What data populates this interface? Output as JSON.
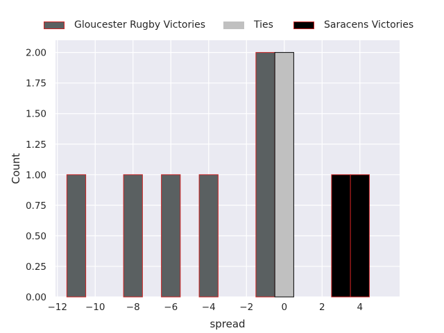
{
  "chart_data": {
    "type": "bar",
    "title": "",
    "xlabel": "spread",
    "ylabel": "Count",
    "xlim": [
      -12.1,
      6.1
    ],
    "ylim": [
      0,
      2.1
    ],
    "bin_width": 1,
    "grid": true,
    "legend_position": "top-center",
    "xticks": [
      -12,
      -10,
      -8,
      -6,
      -4,
      -2,
      0,
      2,
      4
    ],
    "xtick_labels": [
      "−12",
      "−10",
      "−8",
      "−6",
      "−4",
      "−2",
      "0",
      "2",
      "4"
    ],
    "yticks": [
      0,
      0.25,
      0.5,
      0.75,
      1.0,
      1.25,
      1.5,
      1.75,
      2.0
    ],
    "ytick_labels": [
      "0.00",
      "0.25",
      "0.50",
      "0.75",
      "1.00",
      "1.25",
      "1.50",
      "1.75",
      "2.00"
    ],
    "series": [
      {
        "name": "Gloucester Rugby Victories",
        "fill": "#5a6061",
        "edge": "#cc2222",
        "bars": [
          {
            "center": -11,
            "count": 1
          },
          {
            "center": -8,
            "count": 1
          },
          {
            "center": -6,
            "count": 1
          },
          {
            "center": -4,
            "count": 1
          },
          {
            "center": -1,
            "count": 2
          }
        ]
      },
      {
        "name": "Ties",
        "fill": "#c0c0c0",
        "edge": "#000000",
        "bars": [
          {
            "center": 0,
            "count": 2
          }
        ]
      },
      {
        "name": "Saracens Victories",
        "fill": "#000000",
        "edge": "#cc2222",
        "bars": [
          {
            "center": 3,
            "count": 1
          },
          {
            "center": 4,
            "count": 1
          }
        ]
      }
    ]
  }
}
